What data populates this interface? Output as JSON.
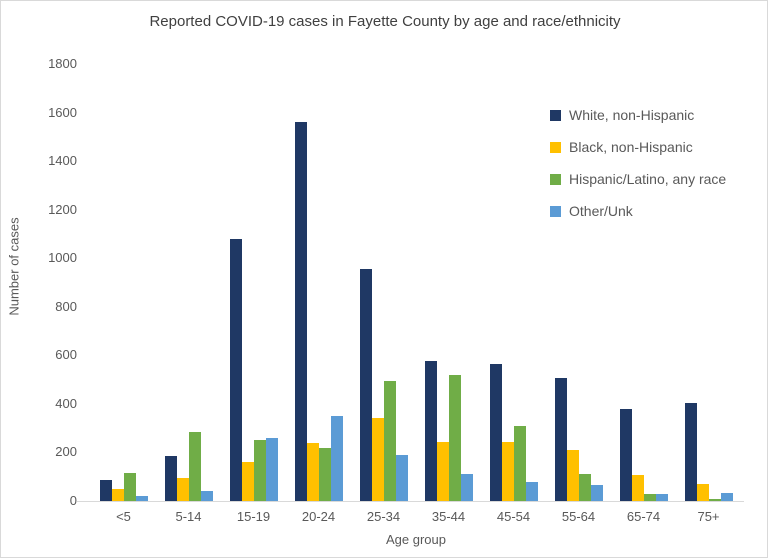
{
  "chart_data": {
    "type": "bar",
    "title": "Reported COVID-19 cases in Fayette County by age and race/ethnicity",
    "xlabel": "Age group",
    "ylabel": "Number of cases",
    "ylim": [
      0,
      1800
    ],
    "y_tick_step": 200,
    "grid": false,
    "legend_position": "inside-top-right",
    "categories": [
      "<5",
      "5-14",
      "15-19",
      "20-24",
      "25-34",
      "35-44",
      "45-54",
      "55-64",
      "65-74",
      "75+"
    ],
    "series": [
      {
        "name": "White, non-Hispanic",
        "color": "#1F3864",
        "values": [
          85,
          185,
          1080,
          1560,
          955,
          578,
          565,
          505,
          380,
          405
        ]
      },
      {
        "name": "Black, non-Hispanic",
        "color": "#FFC000",
        "values": [
          48,
          95,
          160,
          238,
          340,
          245,
          245,
          210,
          107,
          70
        ]
      },
      {
        "name": "Hispanic/Latino, any race",
        "color": "#70AD47",
        "values": [
          115,
          285,
          250,
          220,
          495,
          520,
          310,
          112,
          30,
          10
        ]
      },
      {
        "name": "Other/Unk",
        "color": "#5B9BD5",
        "values": [
          22,
          40,
          260,
          350,
          188,
          113,
          78,
          68,
          30,
          33
        ]
      }
    ]
  },
  "style": {
    "axis_line_color": "#d9d9d9",
    "text_color": "#595959",
    "title_color": "#404040",
    "background": "#ffffff"
  }
}
